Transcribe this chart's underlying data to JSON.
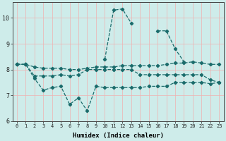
{
  "xlabel": "Humidex (Indice chaleur)",
  "background_color": "#ceecea",
  "grid_color": "#f0b0b0",
  "line_color": "#1a6b6b",
  "x_ticks": [
    0,
    1,
    2,
    3,
    4,
    5,
    6,
    7,
    8,
    9,
    10,
    11,
    12,
    13,
    14,
    15,
    16,
    17,
    18,
    19,
    20,
    21,
    22,
    23
  ],
  "ylim": [
    6.0,
    10.6
  ],
  "xlim": [
    -0.5,
    23.5
  ],
  "series": {
    "top": [
      8.2,
      8.2,
      null,
      null,
      null,
      null,
      null,
      null,
      null,
      null,
      8.4,
      10.3,
      10.35,
      9.8,
      null,
      null,
      9.5,
      9.5,
      8.8,
      8.3,
      null,
      null,
      null,
      null
    ],
    "upper": [
      8.2,
      8.2,
      8.1,
      8.05,
      8.05,
      8.05,
      8.0,
      8.0,
      8.05,
      8.1,
      8.1,
      8.1,
      8.15,
      8.15,
      8.15,
      8.15,
      8.15,
      8.2,
      8.25,
      8.25,
      8.3,
      8.25,
      8.2,
      8.2
    ],
    "mid": [
      8.2,
      8.2,
      7.75,
      7.75,
      7.75,
      7.8,
      7.75,
      7.8,
      8.0,
      8.0,
      8.0,
      8.0,
      8.0,
      8.0,
      7.8,
      7.8,
      7.8,
      7.8,
      7.8,
      7.8,
      7.8,
      7.8,
      7.6,
      7.5
    ],
    "lower": [
      8.2,
      8.2,
      7.65,
      7.2,
      7.3,
      7.35,
      6.65,
      6.9,
      6.4,
      7.35,
      7.3,
      7.3,
      7.3,
      7.3,
      7.3,
      7.35,
      7.35,
      7.35,
      7.5,
      7.5,
      7.5,
      7.5,
      7.45,
      7.5
    ]
  }
}
